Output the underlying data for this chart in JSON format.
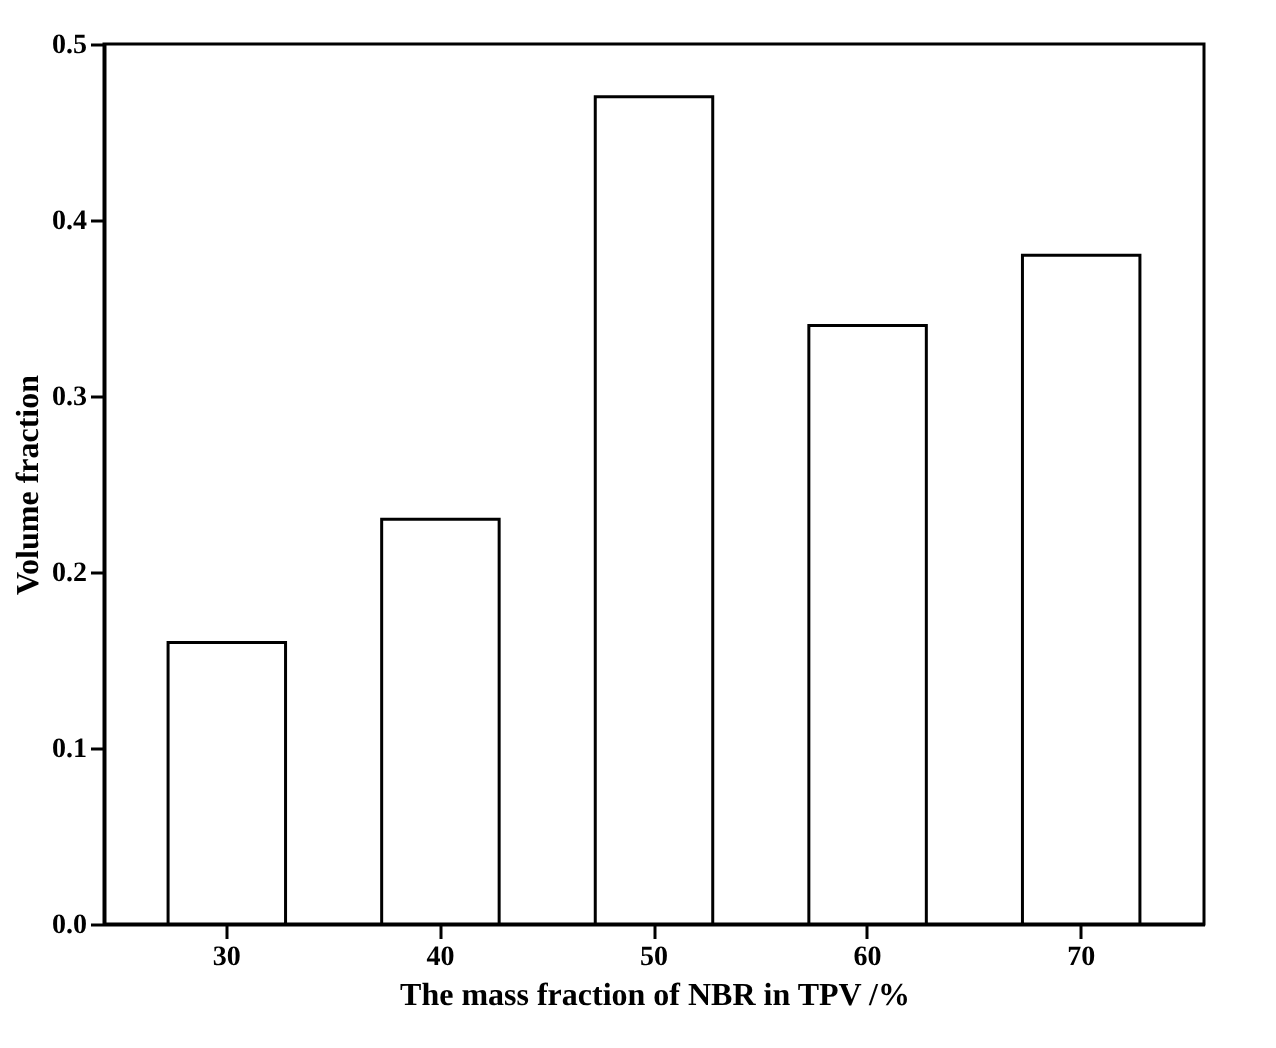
{
  "chart_data": {
    "type": "bar",
    "xlabel": "The mass fraction of NBR in TPV /%",
    "ylabel": "Volume fraction",
    "categories": [
      "30",
      "40",
      "50",
      "60",
      "70"
    ],
    "values": [
      0.16,
      0.23,
      0.47,
      0.34,
      0.38
    ],
    "color": "#ffffff",
    "ylim": [
      0,
      0.5
    ],
    "yticks": [
      {
        "value": 0,
        "label": "0.0"
      },
      {
        "value": 0.1,
        "label": "0.1"
      },
      {
        "value": 0.2,
        "label": "0.2"
      },
      {
        "value": 0.3,
        "label": "0.3"
      },
      {
        "value": 0.4,
        "label": "0.4"
      },
      {
        "value": 0.5,
        "label": "0.5"
      }
    ],
    "grid": false
  }
}
